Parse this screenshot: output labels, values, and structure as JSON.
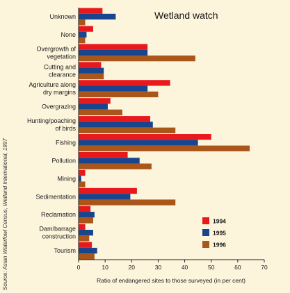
{
  "chart_data": {
    "type": "bar",
    "orientation": "horizontal",
    "title": "Wetland watch",
    "xlabel": "Ratio of endangered sites to those surveyed (in per cent)",
    "ylabel": "",
    "xlim": [
      0,
      70
    ],
    "xticks": [
      "0",
      "10",
      "20",
      "30",
      "40",
      "50",
      "60",
      "70"
    ],
    "categories": [
      [
        "Unknown"
      ],
      [
        "None"
      ],
      [
        "Overgrowth of",
        "vegetation"
      ],
      [
        "Cutting and",
        "clearance"
      ],
      [
        "Agriculture along",
        "dry margins"
      ],
      [
        "Overgrazing"
      ],
      [
        "Hunting/poaching",
        "of birds"
      ],
      [
        "Fishing"
      ],
      [
        "Pollution"
      ],
      [
        "Mining"
      ],
      [
        "Sedimentation"
      ],
      [
        "Reclamation"
      ],
      [
        "Dam/barrage",
        "construction"
      ],
      [
        "Tourism"
      ]
    ],
    "series": [
      {
        "name": "1994",
        "color": "#e8191c",
        "values": [
          9,
          5.5,
          26,
          8.5,
          34.5,
          12,
          27,
          50,
          18.5,
          2.5,
          22,
          4.5,
          2.5,
          5
        ]
      },
      {
        "name": "1995",
        "color": "#18458e",
        "values": [
          14,
          3,
          26,
          9.5,
          26,
          11,
          28,
          45,
          23,
          1,
          19.5,
          6,
          5.5,
          7
        ]
      },
      {
        "name": "1996",
        "color": "#a9561a",
        "values": [
          2.5,
          2.5,
          44,
          9.5,
          30,
          16.5,
          36.5,
          64.5,
          27.5,
          2.5,
          36.5,
          5.5,
          4,
          6
        ]
      }
    ],
    "legend_position": "bottom-right",
    "grid": false,
    "source": "Source: Asian Waterfowl Census, Wetland International, 1997"
  }
}
